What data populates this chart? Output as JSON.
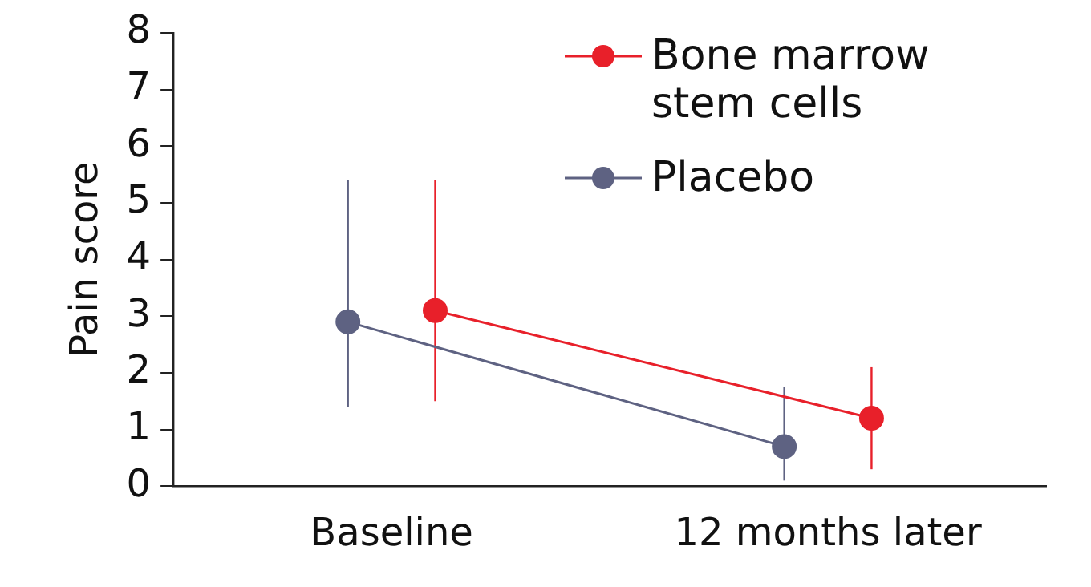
{
  "chart_data": {
    "type": "line",
    "ylabel": "Pain score",
    "categories": [
      "Baseline",
      "12 months later"
    ],
    "series": [
      {
        "name": "Bone marrow stem cells",
        "color": "#e8202a",
        "values": [
          3.1,
          1.2
        ],
        "errors": [
          [
            1.5,
            5.4
          ],
          [
            0.3,
            2.1
          ]
        ]
      },
      {
        "name": "Placebo",
        "color": "#5e6282",
        "values": [
          2.9,
          0.7
        ],
        "errors": [
          [
            1.4,
            5.4
          ],
          [
            0.1,
            1.75
          ]
        ]
      }
    ],
    "ylim": [
      0,
      8
    ],
    "yticks": [
      0,
      1,
      2,
      3,
      4,
      5,
      6,
      7,
      8
    ],
    "grid": false,
    "legend": "top right",
    "marker": "circle",
    "line_style": "solid"
  }
}
